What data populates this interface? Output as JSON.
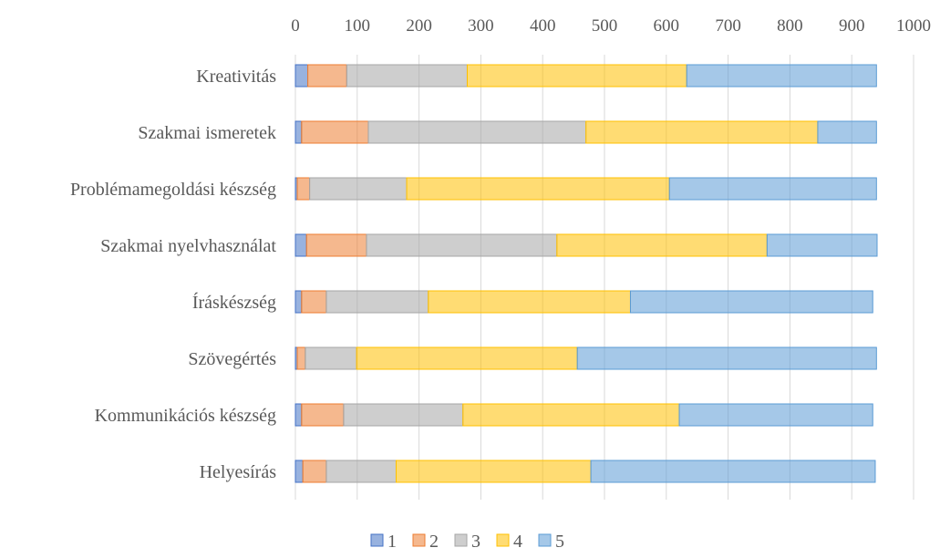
{
  "chart_data": {
    "type": "bar",
    "orientation": "horizontal",
    "stacked": true,
    "xlim": [
      0,
      1000
    ],
    "x_ticks": [
      0,
      100,
      200,
      300,
      400,
      500,
      600,
      700,
      800,
      900,
      1000
    ],
    "x_axis_position": "top",
    "grid": true,
    "legend_position": "bottom",
    "categories": [
      "Kreativitás",
      "Szakmai ismeretek",
      "Problémamegoldási készség",
      "Szakmai nyelvhasználat",
      "Íráskészség",
      "Szövegértés",
      "Kommunikációs készség",
      "Helyesírás"
    ],
    "series": [
      {
        "name": "1",
        "color": "#4472C4",
        "values": [
          20,
          10,
          3,
          18,
          10,
          3,
          10,
          12
        ]
      },
      {
        "name": "2",
        "color": "#ED7D31",
        "values": [
          63,
          108,
          20,
          97,
          40,
          13,
          68,
          38
        ]
      },
      {
        "name": "3",
        "color": "#A5A5A5",
        "values": [
          195,
          352,
          157,
          308,
          165,
          83,
          193,
          113
        ]
      },
      {
        "name": "4",
        "color": "#FFC000",
        "values": [
          355,
          375,
          425,
          340,
          327,
          357,
          350,
          315
        ]
      },
      {
        "name": "5",
        "color": "#5B9BD5",
        "values": [
          307,
          95,
          335,
          178,
          392,
          484,
          313,
          460
        ]
      }
    ]
  }
}
